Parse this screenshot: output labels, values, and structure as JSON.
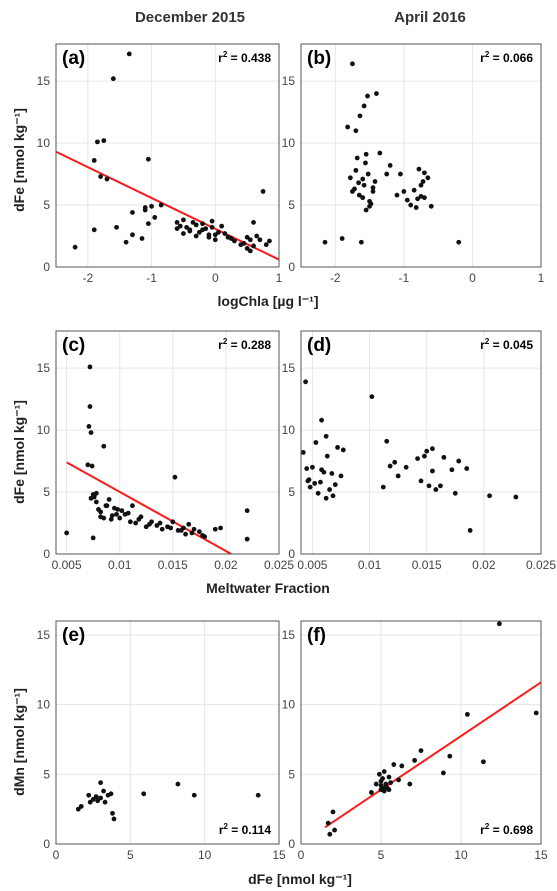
{
  "columns": [
    "December 2015",
    "April 2016"
  ],
  "colors": {
    "points": "#111111",
    "fit": "#ff1a1a",
    "grid": "#e6e6e6",
    "frame": "#555555"
  },
  "rows": [
    {
      "xlabel": "logChla [µg l⁻¹]",
      "ylabel": "dFe [nmol kg⁻¹]"
    },
    {
      "xlabel": "Meltwater Fraction",
      "ylabel": "dFe [nmol kg⁻¹]"
    },
    {
      "xlabel": "dFe [nmol kg⁻¹]",
      "ylabel": "dMn [nmol kg⁻¹]"
    }
  ],
  "chart_data": [
    {
      "type": "scatter",
      "panel": "(a)",
      "r2_label": "r² = 0.438",
      "r2_pos": "top-right",
      "xlim": [
        -2.5,
        1
      ],
      "ylim": [
        0,
        18
      ],
      "xticks": [
        -2,
        -1,
        0,
        1
      ],
      "xtick_labels": [
        "-2",
        "-1",
        "0",
        "1"
      ],
      "yticks": [
        0,
        5,
        10,
        15
      ],
      "ytick_labels": [
        "0",
        "5",
        "10",
        "15"
      ],
      "x": [
        -2.2,
        -1.9,
        -1.9,
        -1.85,
        -1.8,
        -1.75,
        -1.7,
        -1.6,
        -1.55,
        -1.4,
        -1.35,
        -1.3,
        -1.3,
        -1.15,
        -1.1,
        -1.05,
        -1.0,
        -1.05,
        -0.95,
        -0.85,
        -0.6,
        -0.55,
        -0.5,
        -0.45,
        -0.4,
        -0.35,
        -0.3,
        -0.25,
        -0.2,
        -0.15,
        -0.1,
        -0.05,
        0.0,
        0.05,
        0.1,
        0.15,
        0.2,
        0.25,
        0.3,
        0.4,
        0.45,
        0.5,
        0.5,
        0.55,
        0.6,
        0.6,
        0.65,
        0.7,
        0.75,
        0.8,
        0.85,
        -0.6,
        -0.5,
        -0.4,
        -0.3,
        -0.2,
        0.0,
        -0.1,
        0.55,
        -1.1,
        -0.05
      ],
      "y": [
        1.6,
        3.0,
        8.6,
        10.1,
        7.3,
        10.2,
        7.1,
        15.2,
        3.2,
        2.0,
        17.2,
        2.6,
        4.4,
        2.3,
        4.8,
        8.7,
        4.9,
        3.5,
        4.0,
        5.0,
        3.6,
        3.3,
        3.8,
        3.2,
        3.0,
        3.6,
        3.4,
        2.8,
        3.5,
        3.1,
        2.4,
        3.7,
        2.6,
        2.8,
        3.3,
        2.7,
        2.4,
        2.3,
        2.1,
        1.8,
        1.9,
        2.4,
        1.5,
        2.2,
        3.6,
        1.7,
        2.5,
        2.2,
        6.1,
        1.8,
        2.1,
        3.1,
        2.7,
        2.9,
        2.5,
        3.0,
        2.2,
        2.6,
        1.3,
        4.6,
        3.2
      ],
      "fit": {
        "x": [
          -2.5,
          1
        ],
        "y": [
          9.3,
          0.6
        ]
      }
    },
    {
      "type": "scatter",
      "panel": "(b)",
      "r2_label": "r² = 0.066",
      "r2_pos": "top-right",
      "xlim": [
        -2.5,
        1
      ],
      "ylim": [
        0,
        18
      ],
      "xticks": [
        -2,
        -1,
        0,
        1
      ],
      "xtick_labels": [
        "-2",
        "-1",
        "0",
        "1"
      ],
      "yticks": [
        0,
        5,
        10,
        15
      ],
      "ytick_labels": [
        "0",
        "5",
        "10",
        "15"
      ],
      "x": [
        -2.15,
        -1.9,
        -1.82,
        -1.78,
        -1.75,
        -1.72,
        -1.7,
        -1.68,
        -1.66,
        -1.64,
        -1.62,
        -1.6,
        -1.58,
        -1.56,
        -1.55,
        -1.53,
        -1.52,
        -1.5,
        -1.48,
        -1.45,
        -1.42,
        -1.4,
        -1.35,
        -1.25,
        -1.2,
        -1.1,
        -1.05,
        -1.0,
        -0.95,
        -0.9,
        -0.85,
        -0.82,
        -0.78,
        -0.75,
        -0.72,
        -0.7,
        -0.65,
        -0.6,
        -0.2,
        -1.75,
        -1.7,
        -1.65,
        -1.6,
        -1.55,
        -1.5,
        -1.45,
        -0.8,
        -0.7,
        -0.75,
        -1.58
      ],
      "y": [
        2.0,
        2.3,
        11.3,
        7.2,
        16.4,
        6.3,
        11.0,
        8.8,
        6.8,
        12.2,
        2.0,
        5.6,
        6.6,
        8.4,
        4.6,
        13.8,
        7.5,
        5.3,
        5.1,
        6.1,
        6.9,
        14.0,
        9.2,
        7.5,
        8.2,
        5.8,
        7.5,
        6.1,
        5.4,
        5.0,
        6.2,
        4.8,
        7.9,
        5.7,
        6.9,
        5.6,
        7.2,
        4.9,
        2.0,
        6.1,
        7.8,
        5.8,
        7.1,
        9.1,
        4.9,
        6.4,
        5.5,
        7.6,
        6.6,
        13.0
      ],
      "fit": null
    },
    {
      "type": "scatter",
      "panel": "(c)",
      "r2_label": "r² = 0.288",
      "r2_pos": "top-right",
      "xlim": [
        0.004,
        0.025
      ],
      "ylim": [
        0,
        18
      ],
      "xticks": [
        0.005,
        0.01,
        0.015,
        0.02,
        0.025
      ],
      "xtick_labels": [
        "0.005",
        "0.01",
        "0.015",
        "0.02",
        "0.025"
      ],
      "yticks": [
        0,
        5,
        10,
        15
      ],
      "ytick_labels": [
        "0",
        "5",
        "10",
        "15"
      ],
      "x": [
        0.005,
        0.007,
        0.0071,
        0.0072,
        0.0072,
        0.0073,
        0.0074,
        0.0075,
        0.0076,
        0.0078,
        0.008,
        0.0082,
        0.0085,
        0.0087,
        0.009,
        0.0092,
        0.0095,
        0.0097,
        0.01,
        0.0102,
        0.0105,
        0.011,
        0.0112,
        0.0115,
        0.012,
        0.0125,
        0.013,
        0.0135,
        0.014,
        0.0145,
        0.015,
        0.0152,
        0.0155,
        0.016,
        0.0162,
        0.0165,
        0.017,
        0.0175,
        0.018,
        0.019,
        0.0195,
        0.022,
        0.022,
        0.0075,
        0.0078,
        0.0082,
        0.0088,
        0.0093,
        0.0098,
        0.0108,
        0.0118,
        0.0128,
        0.0138,
        0.0148,
        0.0158,
        0.0168,
        0.0178,
        0.0085,
        0.0073
      ],
      "y": [
        1.7,
        7.2,
        10.3,
        15.1,
        11.9,
        9.8,
        7.1,
        1.3,
        4.6,
        4.9,
        3.6,
        3.0,
        8.7,
        3.9,
        4.4,
        2.8,
        3.7,
        3.2,
        2.9,
        3.5,
        3.2,
        2.6,
        3.9,
        2.5,
        3.0,
        2.2,
        2.6,
        2.3,
        2.0,
        2.2,
        2.6,
        6.2,
        1.9,
        2.1,
        1.6,
        2.4,
        2.0,
        1.8,
        1.4,
        2.0,
        2.1,
        1.2,
        3.5,
        4.8,
        4.2,
        3.4,
        3.9,
        3.1,
        3.6,
        3.3,
        2.8,
        2.4,
        2.5,
        2.1,
        1.9,
        1.7,
        1.5,
        2.9,
        4.5
      ],
      "fit": {
        "x": [
          0.005,
          0.0205
        ],
        "y": [
          7.4,
          0.0
        ]
      }
    },
    {
      "type": "scatter",
      "panel": "(d)",
      "r2_label": "r² = 0.045",
      "r2_pos": "top-right",
      "xlim": [
        0.004,
        0.025
      ],
      "ylim": [
        0,
        18
      ],
      "xticks": [
        0.005,
        0.01,
        0.015,
        0.02,
        0.025
      ],
      "xtick_labels": [
        "0.005",
        "0.01",
        "0.015",
        "0.02",
        "0.025"
      ],
      "yticks": [
        0,
        5,
        10,
        15
      ],
      "ytick_labels": [
        "0",
        "5",
        "10",
        "15"
      ],
      "x": [
        0.0042,
        0.0044,
        0.0045,
        0.0047,
        0.0048,
        0.005,
        0.0052,
        0.0053,
        0.0055,
        0.0057,
        0.0058,
        0.006,
        0.0062,
        0.0063,
        0.0065,
        0.0067,
        0.0068,
        0.007,
        0.0072,
        0.0075,
        0.0077,
        0.0102,
        0.0112,
        0.0115,
        0.0118,
        0.0122,
        0.0125,
        0.0132,
        0.0142,
        0.0145,
        0.0148,
        0.015,
        0.0152,
        0.0155,
        0.0158,
        0.0162,
        0.0165,
        0.0172,
        0.0175,
        0.0178,
        0.0185,
        0.0188,
        0.0205,
        0.0228,
        0.0155,
        0.0058,
        0.0062,
        0.0046
      ],
      "y": [
        8.2,
        13.9,
        6.9,
        6.0,
        5.4,
        7.0,
        5.7,
        9.0,
        4.9,
        5.8,
        10.8,
        6.6,
        4.5,
        7.9,
        5.2,
        6.5,
        4.7,
        5.6,
        8.6,
        6.3,
        8.4,
        12.7,
        5.4,
        9.1,
        7.1,
        7.4,
        6.3,
        7.0,
        7.7,
        5.9,
        7.9,
        8.3,
        5.5,
        6.7,
        5.2,
        5.5,
        7.8,
        6.8,
        4.9,
        7.5,
        6.9,
        1.9,
        4.7,
        4.6,
        8.5,
        6.8,
        9.5,
        5.9
      ],
      "fit": null
    },
    {
      "type": "scatter",
      "panel": "(e)",
      "r2_label": "r² = 0.114",
      "r2_pos": "bottom-right",
      "xlim": [
        0,
        15
      ],
      "ylim": [
        0,
        16
      ],
      "xticks": [
        0,
        5,
        10,
        15
      ],
      "xtick_labels": [
        "0",
        "5",
        "10",
        "15"
      ],
      "yticks": [
        0,
        5,
        10,
        15
      ],
      "ytick_labels": [
        "0",
        "5",
        "10",
        "15"
      ],
      "x": [
        1.5,
        1.7,
        2.2,
        2.3,
        2.5,
        2.7,
        3.0,
        3.0,
        3.2,
        3.3,
        3.5,
        3.7,
        3.8,
        3.9,
        5.9,
        8.2,
        9.3,
        13.6,
        2.8
      ],
      "y": [
        2.5,
        2.7,
        3.5,
        3.0,
        3.2,
        3.4,
        4.4,
        3.3,
        3.8,
        3.0,
        3.5,
        3.6,
        2.2,
        1.8,
        3.6,
        4.3,
        3.5,
        3.5,
        3.1
      ],
      "fit": null
    },
    {
      "type": "scatter",
      "panel": "(f)",
      "r2_label": "r² = 0.698",
      "r2_pos": "bottom-right",
      "xlim": [
        0,
        15
      ],
      "ylim": [
        0,
        16
      ],
      "xticks": [
        0,
        5,
        10,
        15
      ],
      "xtick_labels": [
        "0",
        "5",
        "10",
        "15"
      ],
      "yticks": [
        0,
        5,
        10,
        15
      ],
      "ytick_labels": [
        "0",
        "5",
        "10",
        "15"
      ],
      "x": [
        1.7,
        1.8,
        2.0,
        2.1,
        4.4,
        4.7,
        4.9,
        5.0,
        5.0,
        5.1,
        5.1,
        5.2,
        5.2,
        5.3,
        5.3,
        5.4,
        5.5,
        5.6,
        5.8,
        6.1,
        6.3,
        6.8,
        7.1,
        7.5,
        8.9,
        9.3,
        10.4,
        11.4,
        12.4,
        14.7,
        5.0,
        5.5
      ],
      "y": [
        1.5,
        0.7,
        2.3,
        1.0,
        3.7,
        4.3,
        5.0,
        4.2,
        3.9,
        4.7,
        4.0,
        5.2,
        3.8,
        4.3,
        4.1,
        4.0,
        3.9,
        4.4,
        5.7,
        4.6,
        5.6,
        4.3,
        6.0,
        6.7,
        5.1,
        6.3,
        9.3,
        5.9,
        15.8,
        9.4,
        4.5,
        4.8
      ],
      "fit": {
        "x": [
          1.5,
          15
        ],
        "y": [
          1.2,
          11.6
        ]
      }
    }
  ]
}
